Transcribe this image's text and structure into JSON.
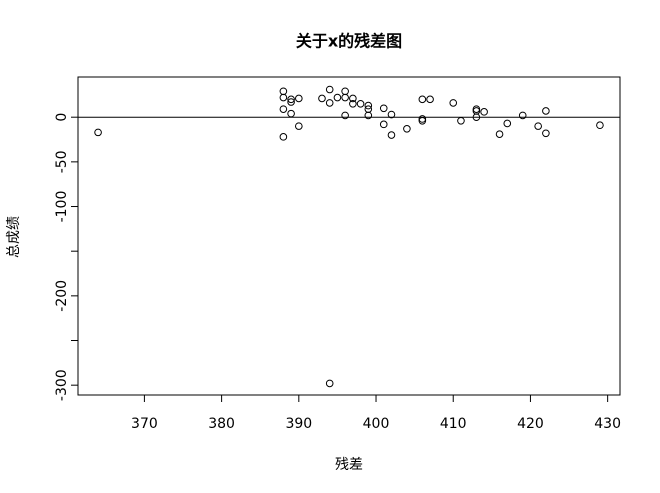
{
  "chart_data": {
    "type": "scatter",
    "title": "关于x的残差图",
    "x_label": "残差",
    "y_label": "总成绩",
    "xlim": [
      361.4,
      431.6
    ],
    "ylim": [
      -311,
      45
    ],
    "xticks": [
      370,
      380,
      390,
      400,
      410,
      420,
      430
    ],
    "yticks": [
      -300,
      -200,
      -100,
      -50,
      0
    ],
    "yminor_ticks": [
      -250,
      -150
    ],
    "hline": 0,
    "color": "#000000",
    "x": [
      364,
      388,
      388,
      388,
      388,
      389,
      389,
      389,
      390,
      390,
      393,
      394,
      394,
      395,
      396,
      396,
      396,
      397,
      397,
      398,
      399,
      399,
      399,
      401,
      401,
      402,
      402,
      404,
      406,
      406,
      406,
      407,
      410,
      411,
      413,
      413,
      413,
      414,
      416,
      417,
      419,
      421,
      422,
      422,
      429,
      394
    ],
    "values": [
      -17,
      29,
      22,
      9,
      -22,
      17,
      20,
      4,
      21,
      -10,
      21,
      31,
      16,
      22,
      29,
      22,
      2,
      21,
      15,
      15,
      13,
      9,
      2,
      10,
      -8,
      3,
      -20,
      -13,
      20,
      -2,
      -4,
      20,
      16,
      -4,
      9,
      7,
      0,
      6,
      -19,
      -7,
      2,
      -10,
      7,
      -18,
      -9,
      -298
    ]
  }
}
